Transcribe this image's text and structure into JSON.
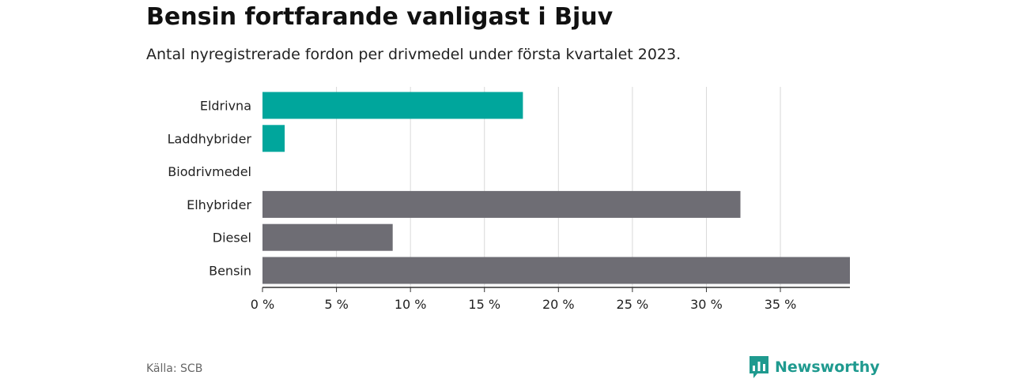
{
  "header": {
    "title": "Bensin fortfarande vanligast i Bjuv",
    "subtitle": "Antal nyregistrerade fordon per drivmedel under första kvartalet 2023."
  },
  "footer": {
    "source": "Källa: SCB",
    "brand": "Newsworthy"
  },
  "colors": {
    "highlight": "#00a69c",
    "default": "#6e6d74",
    "grid": "#d9d9d9",
    "axis": "#333333"
  },
  "icons": {
    "brand_logo": "bar-chart-speech-bubble-icon"
  },
  "chart_data": {
    "type": "bar",
    "orientation": "horizontal",
    "categories": [
      "Eldrivna",
      "Laddhybrider",
      "Biodrivmedel",
      "Elhybrider",
      "Diesel",
      "Bensin"
    ],
    "values": [
      17.6,
      1.5,
      0,
      32.3,
      8.8,
      39.7
    ],
    "highlight": [
      true,
      true,
      false,
      false,
      false,
      false
    ],
    "xticks": [
      "0 %",
      "5 %",
      "10 %",
      "15 %",
      "20 %",
      "25 %",
      "30 %",
      "35 %"
    ],
    "xtick_values": [
      0,
      5,
      10,
      15,
      20,
      25,
      30,
      35
    ],
    "xlim": [
      0,
      39.7
    ],
    "grid": true
  }
}
